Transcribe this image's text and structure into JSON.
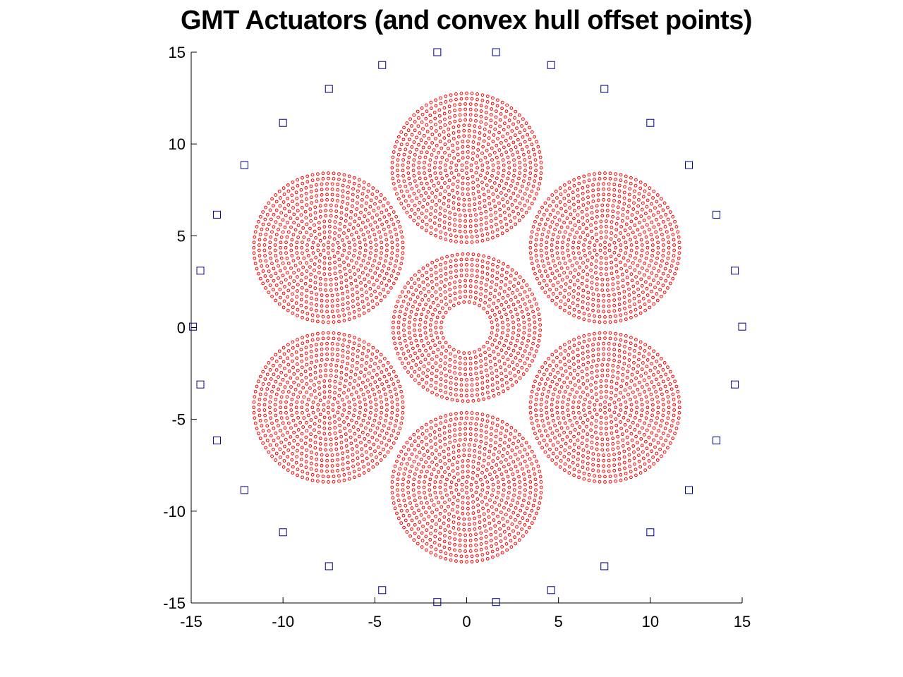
{
  "chart_data": {
    "type": "scatter",
    "title": "GMT Actuators (and convex hull offset points)",
    "xlabel": "",
    "ylabel": "",
    "xlim": [
      -15,
      15
    ],
    "ylim": [
      -15,
      15
    ],
    "xticks": [
      -15,
      -10,
      -5,
      0,
      5,
      10,
      15
    ],
    "yticks": [
      -15,
      -10,
      -5,
      0,
      5,
      10,
      15
    ],
    "xtick_labels": [
      "-15",
      "-10",
      "-5",
      "0",
      "5",
      "10",
      "15"
    ],
    "ytick_labels": [
      "-15",
      "-10",
      "-5",
      "0",
      "5",
      "10",
      "15"
    ],
    "grid": false,
    "box": false,
    "series": [
      {
        "marker": "circle",
        "color": "#ff0000",
        "segments": [
          {
            "center": [
              0,
              0
            ],
            "outer_radius": 4.25,
            "inner_radius": 1.25
          },
          {
            "center": [
              0,
              8.7
            ],
            "outer_radius": 4.25,
            "inner_radius": 0
          },
          {
            "center": [
              7.53,
              4.35
            ],
            "outer_radius": 4.25,
            "inner_radius": 0
          },
          {
            "center": [
              7.53,
              -4.35
            ],
            "outer_radius": 4.25,
            "inner_radius": 0
          },
          {
            "center": [
              0,
              -8.7
            ],
            "outer_radius": 4.25,
            "inner_radius": 0
          },
          {
            "center": [
              -7.53,
              -4.35
            ],
            "outer_radius": 4.25,
            "inner_radius": 0
          },
          {
            "center": [
              -7.53,
              4.35
            ],
            "outer_radius": 4.25,
            "inner_radius": 0
          }
        ],
        "ring_spacing": 0.29,
        "point_spacing": 0.29
      },
      {
        "marker": "square",
        "color": "#00008b",
        "points": [
          [
            -14.9,
            0.05
          ],
          [
            -14.5,
            3.1
          ],
          [
            -13.6,
            6.15
          ],
          [
            -12.1,
            8.85
          ],
          [
            -10.0,
            11.15
          ],
          [
            -7.5,
            13.0
          ],
          [
            -4.6,
            14.3
          ],
          [
            -1.6,
            15.0
          ],
          [
            1.6,
            15.0
          ],
          [
            4.6,
            14.3
          ],
          [
            7.5,
            13.0
          ],
          [
            10.0,
            11.15
          ],
          [
            12.1,
            8.85
          ],
          [
            13.6,
            6.15
          ],
          [
            14.6,
            3.1
          ],
          [
            15.0,
            0.05
          ],
          [
            14.6,
            -3.1
          ],
          [
            13.6,
            -6.15
          ],
          [
            12.1,
            -8.85
          ],
          [
            10.0,
            -11.15
          ],
          [
            7.5,
            -13.0
          ],
          [
            4.6,
            -14.3
          ],
          [
            1.6,
            -14.95
          ],
          [
            -1.6,
            -14.95
          ],
          [
            -4.6,
            -14.3
          ],
          [
            -7.5,
            -13.0
          ],
          [
            -10.0,
            -11.15
          ],
          [
            -12.1,
            -8.85
          ],
          [
            -13.6,
            -6.15
          ],
          [
            -14.5,
            -3.1
          ]
        ]
      }
    ]
  }
}
